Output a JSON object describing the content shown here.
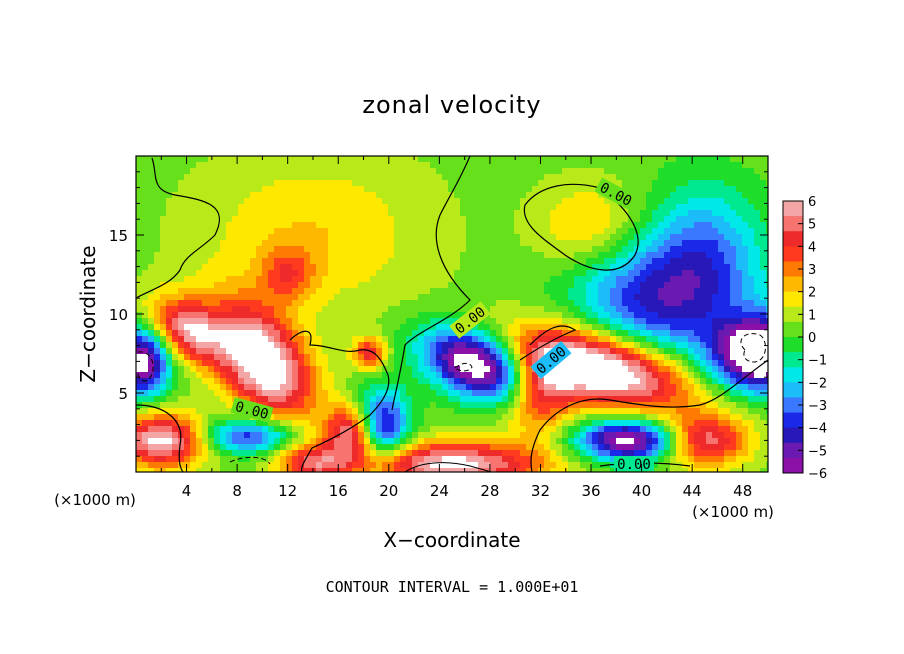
{
  "chart_data": {
    "type": "heatmap",
    "title": "zonal velocity",
    "xlabel": "X−coordinate",
    "ylabel": "Z−coordinate",
    "x_scale_note_left": "(×1000 m)",
    "x_scale_note_right": "(×1000 m)",
    "footer": "CONTOUR INTERVAL = 1.000E+01",
    "xlim": [
      0,
      50
    ],
    "ylim": [
      0,
      20
    ],
    "x_ticks": [
      4,
      8,
      12,
      16,
      20,
      24,
      28,
      32,
      36,
      40,
      44,
      48
    ],
    "y_ticks": [
      5,
      10,
      15
    ],
    "contour_label": "0.00",
    "colorbar": {
      "ticks": [
        "6",
        "5",
        "4",
        "3",
        "2",
        "1",
        "0",
        "−1",
        "−2",
        "−3",
        "−4",
        "−5",
        "−6"
      ],
      "colors": [
        "#f4a6a6",
        "#f7736f",
        "#ee2a2a",
        "#ff3a1e",
        "#ff7a00",
        "#ffb800",
        "#ffe800",
        "#b8ea1a",
        "#66e01a",
        "#1ede2a",
        "#00e890",
        "#00e8e8",
        "#1cbcf8",
        "#3a78ff",
        "#1a28e8",
        "#2818b8",
        "#6a1ab0",
        "#8a10a8"
      ]
    },
    "features": [
      {
        "kind": "max",
        "x": 10,
        "y": 7,
        "value": 7,
        "sx": 3.2,
        "sy": 2.0,
        "rot": -40
      },
      {
        "kind": "max",
        "x": 4,
        "y": 9,
        "value": 5,
        "sx": 2.2,
        "sy": 1.3,
        "rot": -20
      },
      {
        "kind": "max",
        "x": 37,
        "y": 6.5,
        "value": 8,
        "sx": 5.0,
        "sy": 1.6,
        "rot": -10
      },
      {
        "kind": "max",
        "x": 32,
        "y": 5,
        "value": 4,
        "sx": 2.0,
        "sy": 1.8,
        "rot": 40
      },
      {
        "kind": "min",
        "x": 27,
        "y": 6.8,
        "value": -8,
        "sx": 3.0,
        "sy": 1.4,
        "rot": -15
      },
      {
        "kind": "min",
        "x": 39,
        "y": 2,
        "value": -7,
        "sx": 2.8,
        "sy": 0.9,
        "rot": 0
      },
      {
        "kind": "min",
        "x": 49.5,
        "y": 7.5,
        "value": -9,
        "sx": 2.4,
        "sy": 1.5,
        "rot": 0
      },
      {
        "kind": "min",
        "x": 0.5,
        "y": 7,
        "value": -7,
        "sx": 1.5,
        "sy": 1.5,
        "rot": 0
      },
      {
        "kind": "min",
        "x": 9,
        "y": 2.3,
        "value": -4.5,
        "sx": 2.6,
        "sy": 0.8,
        "rot": 0
      },
      {
        "kind": "min",
        "x": 19.5,
        "y": 3,
        "value": -5,
        "sx": 1.5,
        "sy": 1.6,
        "rot": 0
      },
      {
        "kind": "min",
        "x": 40,
        "y": 11,
        "value": -3,
        "sx": 4.0,
        "sy": 2.5,
        "rot": 0
      },
      {
        "kind": "min",
        "x": 45,
        "y": 14,
        "value": -2.5,
        "sx": 3.0,
        "sy": 3.0,
        "rot": 0
      },
      {
        "kind": "max",
        "x": 36,
        "y": 15.5,
        "value": 2,
        "sx": 3.0,
        "sy": 2.0,
        "rot": 0
      },
      {
        "kind": "max",
        "x": 12,
        "y": 12.5,
        "value": 2.5,
        "sx": 1.5,
        "sy": 1.2,
        "rot": 0
      },
      {
        "kind": "max",
        "x": 17,
        "y": 2.5,
        "value": 5,
        "sx": 1.4,
        "sy": 1.2,
        "rot": 0
      },
      {
        "kind": "max",
        "x": 18.5,
        "y": 7.5,
        "value": 4,
        "sx": 0.9,
        "sy": 0.7,
        "rot": 0
      },
      {
        "kind": "max",
        "x": 25,
        "y": 0.5,
        "value": 6,
        "sx": 5.0,
        "sy": 1.0,
        "rot": 0
      },
      {
        "kind": "max",
        "x": 2,
        "y": 2,
        "value": 6,
        "sx": 2.5,
        "sy": 1.2,
        "rot": 0
      },
      {
        "kind": "max",
        "x": 45,
        "y": 2,
        "value": 5,
        "sx": 2.5,
        "sy": 1.2,
        "rot": 0
      },
      {
        "kind": "max",
        "x": 14,
        "y": 0.5,
        "value": 4,
        "sx": 2.0,
        "sy": 0.9,
        "rot": 0
      }
    ]
  }
}
